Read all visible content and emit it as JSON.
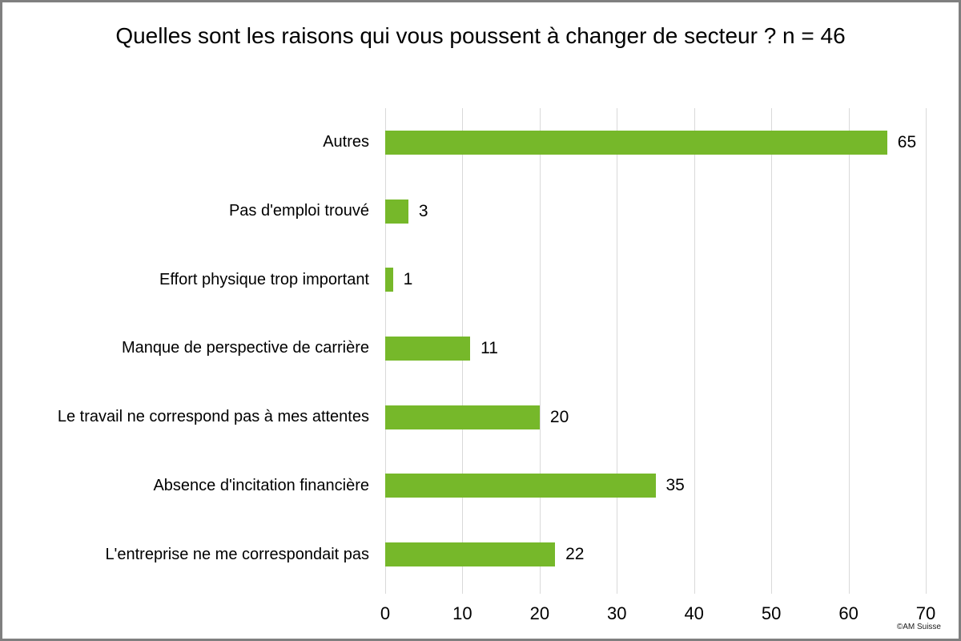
{
  "frame": {
    "copyright": "©AM Suisse"
  },
  "chart_data": {
    "type": "bar",
    "orientation": "horizontal",
    "title": "Quelles sont les raisons qui vous poussent à changer de secteur ? n = 46",
    "categories": [
      "Autres",
      "Pas d'emploi trouvé",
      "Effort physique trop important",
      "Manque de perspective de carrière",
      "Le travail ne correspond pas à mes attentes",
      "Absence d'incitation financière",
      "L'entreprise ne me correspondait pas"
    ],
    "values": [
      65,
      3,
      1,
      11,
      20,
      35,
      22
    ],
    "value_labels": [
      "65",
      "3",
      "1",
      "11",
      "20",
      "35",
      "22"
    ],
    "xlim": [
      0,
      70
    ],
    "x_ticks": [
      0,
      10,
      20,
      30,
      40,
      50,
      60,
      70
    ],
    "grid": true,
    "legend": "none",
    "bar_color": "#76b82a",
    "gridline_color": "#d9d9d9",
    "text_color": "#000000",
    "background_color": "#ffffff"
  }
}
